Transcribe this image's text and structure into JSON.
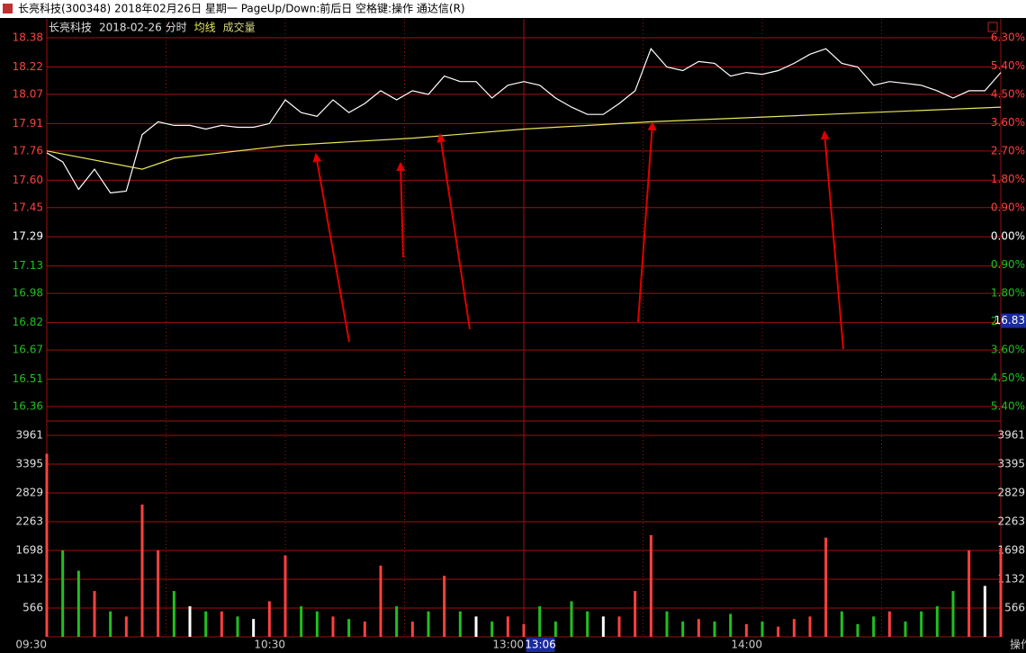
{
  "window": {
    "title": "长亮科技(300348) 2018年02月26日 星期一 PageUp/Down:前后日 空格键:操作 通达信(R)",
    "corner_button": "操作"
  },
  "chart_data": [
    {
      "type": "line",
      "title": "长亮科技",
      "subtitle": "2018-02-26 分时",
      "x": [
        0,
        4,
        8,
        12,
        16,
        20,
        24,
        28,
        32,
        36,
        40,
        44,
        48,
        52,
        56,
        60,
        64,
        68,
        72,
        76,
        80,
        84,
        88,
        92,
        96,
        100,
        104,
        108,
        112,
        116,
        120,
        124,
        128,
        132,
        136,
        140,
        144,
        148,
        152,
        156,
        160,
        164,
        168,
        172,
        176,
        180,
        184,
        188,
        192,
        196,
        200,
        204,
        208,
        212,
        216,
        220,
        224,
        228,
        232,
        236,
        240
      ],
      "series": [
        {
          "color": "#ffffff",
          "values": [
            17.75,
            17.7,
            17.55,
            17.66,
            17.53,
            17.54,
            17.85,
            17.92,
            17.9,
            17.9,
            17.88,
            17.9,
            17.89,
            17.89,
            17.91,
            18.04,
            17.97,
            17.95,
            18.04,
            17.97,
            18.02,
            18.09,
            18.04,
            18.09,
            18.07,
            18.17,
            18.14,
            18.14,
            18.05,
            18.12,
            18.14,
            18.12,
            18.05,
            18.0,
            17.96,
            17.96,
            18.02,
            18.09,
            18.32,
            18.22,
            18.2,
            18.25,
            18.24,
            18.17,
            18.19,
            18.18,
            18.2,
            18.24,
            18.29,
            18.32,
            18.24,
            18.22,
            18.12,
            18.14,
            18.13,
            18.12,
            18.09,
            18.05,
            18.09,
            18.09,
            18.19
          ]
        },
        {
          "name": "均线",
          "color": "#e8e85c",
          "x": [
            0,
            24,
            32,
            60,
            92,
            120,
            152,
            196,
            240
          ],
          "values": [
            17.76,
            17.66,
            17.72,
            17.79,
            17.83,
            17.88,
            17.92,
            17.96,
            18.0
          ]
        }
      ],
      "xlim": [
        0,
        240
      ],
      "xticks": [
        {
          "value": 0,
          "label": "09:30"
        },
        {
          "value": 60,
          "label": "10:30"
        },
        {
          "value": 120,
          "label": "13:00"
        },
        {
          "value": 180,
          "label": "14:00"
        }
      ],
      "xgrid": [
        30,
        60,
        90,
        150,
        180,
        210
      ],
      "session_break": 120,
      "ylim": [
        16.36,
        18.38
      ],
      "yticks": [
        18.38,
        18.22,
        18.07,
        17.91,
        17.76,
        {
          "value": 17.6,
          "label": "17.60"
        },
        17.45,
        17.29,
        17.13,
        16.98,
        16.82,
        16.67,
        16.51,
        16.36
      ],
      "y2lim": [
        -5.4,
        6.3
      ],
      "y2ticks": [
        {
          "value": 6.3,
          "label": "6.30%"
        },
        {
          "value": 5.4,
          "label": "5.40%"
        },
        {
          "value": 4.5,
          "label": "4.50%"
        },
        {
          "value": 3.6,
          "label": "3.60%"
        },
        {
          "value": 2.7,
          "label": "2.70%"
        },
        {
          "value": 1.8,
          "label": "1.80%"
        },
        {
          "value": 0.9,
          "label": "0.90%"
        },
        {
          "value": 0,
          "label": "0.00%"
        },
        {
          "value": -0.9,
          "label": "0.90%"
        },
        {
          "value": -1.8,
          "label": "1.80%"
        },
        {
          "value": -2.7,
          "label": "2.70%"
        },
        {
          "value": -3.6,
          "label": "3.60%"
        },
        {
          "value": -4.5,
          "label": "4.50%"
        },
        {
          "value": -5.4,
          "label": "5.40%"
        }
      ],
      "up_color": "#ff4040",
      "down_color": "#20c020",
      "flat_color": "#ffffff",
      "cursor": {
        "x": {
          "value": 126,
          "label": "13:06"
        },
        "y": {
          "value": 16.83,
          "label": "16.83"
        }
      }
    },
    {
      "type": "bar",
      "title": "成交量",
      "title_color": "#d8d880",
      "x": [
        0,
        4,
        8,
        12,
        16,
        20,
        24,
        28,
        32,
        36,
        40,
        44,
        48,
        52,
        56,
        60,
        64,
        68,
        72,
        76,
        80,
        84,
        88,
        92,
        96,
        100,
        104,
        108,
        112,
        116,
        120,
        124,
        128,
        132,
        136,
        140,
        144,
        148,
        152,
        156,
        160,
        164,
        168,
        172,
        176,
        180,
        184,
        188,
        192,
        196,
        200,
        204,
        208,
        212,
        216,
        220,
        224,
        228,
        232,
        236,
        240
      ],
      "values": [
        3600,
        1700,
        1300,
        900,
        500,
        400,
        2600,
        1700,
        900,
        600,
        500,
        500,
        400,
        350,
        700,
        1600,
        600,
        500,
        400,
        350,
        300,
        1400,
        600,
        300,
        500,
        1200,
        500,
        400,
        300,
        400,
        250,
        600,
        300,
        700,
        500,
        400,
        400,
        900,
        2000,
        500,
        300,
        350,
        300,
        450,
        250,
        300,
        200,
        350,
        400,
        1950,
        500,
        250,
        400,
        500,
        300,
        500,
        600,
        900,
        1700,
        1000,
        1750
      ],
      "ylim": [
        0,
        3961
      ],
      "yticks": [
        3961,
        3395,
        2829,
        2263,
        1698,
        1132,
        566
      ]
    }
  ]
}
